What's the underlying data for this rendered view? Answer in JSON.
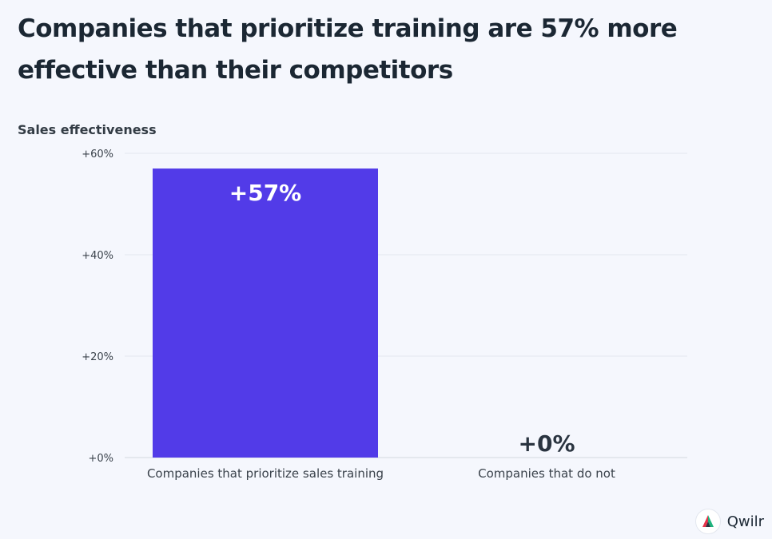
{
  "title": "Companies that prioritize training are 57% more effective than their competitors",
  "brand": {
    "name": "Qwilr",
    "colors": [
      "#e8334a",
      "#1fb47e",
      "#2a3440"
    ]
  },
  "chart_data": {
    "type": "bar",
    "ylabel": "Sales effectiveness",
    "xlabel": "",
    "ylim": [
      0,
      60
    ],
    "yticks": [
      0,
      20,
      40,
      60
    ],
    "ytick_labels": [
      "+0%",
      "+20%",
      "+40%",
      "+60%"
    ],
    "categories": [
      "Companies that prioritize sales training",
      "Companies that do not"
    ],
    "values": [
      57,
      0
    ],
    "data_labels": [
      "+57%",
      "+0%"
    ],
    "bar_color": "#523be8",
    "grid": true
  }
}
